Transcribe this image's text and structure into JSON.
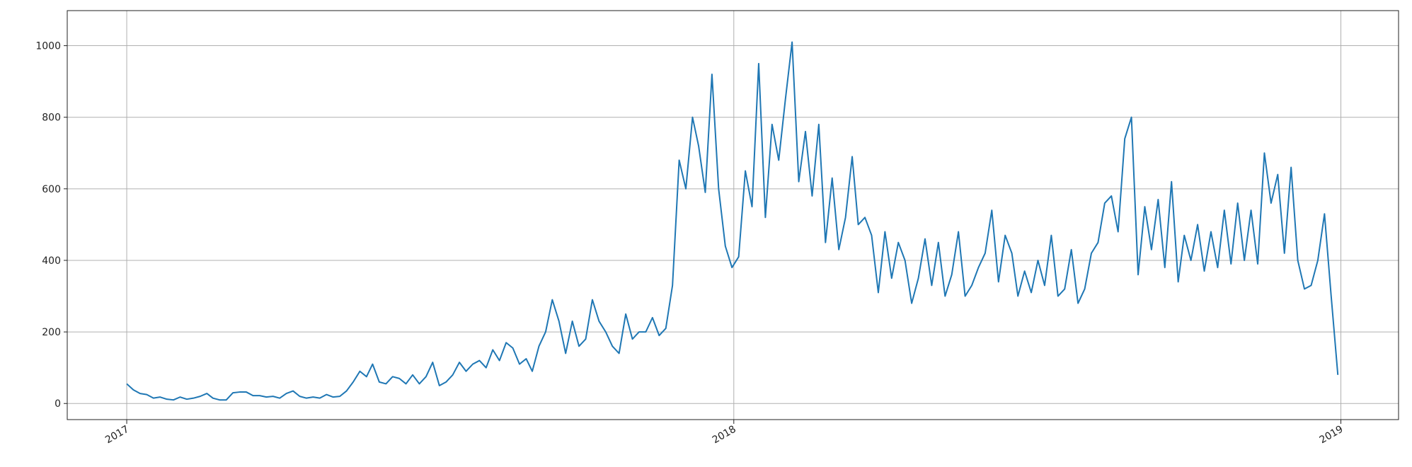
{
  "chart_data": {
    "type": "line",
    "color": "#1f77b4",
    "grid": true,
    "xlim": [
      2016.902,
      2019.095
    ],
    "xticks": [
      2017,
      2018,
      2019
    ],
    "ylim": [
      -45,
      1098
    ],
    "yticks": [
      0,
      200,
      400,
      600,
      800,
      1000
    ],
    "x": [
      2017,
      2017.011,
      2017.022,
      2017.033,
      2017.044,
      2017.055,
      2017.066,
      2017.077,
      2017.088,
      2017.099,
      2017.11,
      2017.121,
      2017.132,
      2017.142,
      2017.153,
      2017.164,
      2017.175,
      2017.186,
      2017.197,
      2017.208,
      2017.219,
      2017.23,
      2017.241,
      2017.252,
      2017.263,
      2017.274,
      2017.285,
      2017.296,
      2017.307,
      2017.318,
      2017.329,
      2017.34,
      2017.351,
      2017.362,
      2017.373,
      2017.384,
      2017.395,
      2017.405,
      2017.416,
      2017.427,
      2017.438,
      2017.449,
      2017.46,
      2017.471,
      2017.482,
      2017.493,
      2017.504,
      2017.515,
      2017.526,
      2017.537,
      2017.548,
      2017.559,
      2017.57,
      2017.581,
      2017.592,
      2017.603,
      2017.614,
      2017.625,
      2017.636,
      2017.647,
      2017.658,
      2017.668,
      2017.679,
      2017.69,
      2017.701,
      2017.712,
      2017.723,
      2017.734,
      2017.745,
      2017.756,
      2017.767,
      2017.778,
      2017.789,
      2017.8,
      2017.811,
      2017.822,
      2017.833,
      2017.844,
      2017.855,
      2017.866,
      2017.877,
      2017.888,
      2017.899,
      2017.91,
      2017.921,
      2017.932,
      2017.942,
      2017.953,
      2017.964,
      2017.975,
      2017.986,
      2017.997,
      2018.008,
      2018.019,
      2018.03,
      2018.041,
      2018.052,
      2018.063,
      2018.074,
      2018.085,
      2018.096,
      2018.107,
      2018.118,
      2018.129,
      2018.14,
      2018.151,
      2018.162,
      2018.173,
      2018.184,
      2018.195,
      2018.205,
      2018.216,
      2018.227,
      2018.238,
      2018.249,
      2018.26,
      2018.271,
      2018.282,
      2018.293,
      2018.304,
      2018.315,
      2018.326,
      2018.337,
      2018.348,
      2018.359,
      2018.37,
      2018.381,
      2018.392,
      2018.403,
      2018.414,
      2018.425,
      2018.436,
      2018.447,
      2018.458,
      2018.468,
      2018.479,
      2018.49,
      2018.501,
      2018.512,
      2018.523,
      2018.534,
      2018.545,
      2018.556,
      2018.567,
      2018.578,
      2018.589,
      2018.6,
      2018.611,
      2018.622,
      2018.633,
      2018.644,
      2018.655,
      2018.666,
      2018.677,
      2018.688,
      2018.699,
      2018.71,
      2018.721,
      2018.732,
      2018.742,
      2018.753,
      2018.764,
      2018.775,
      2018.786,
      2018.797,
      2018.808,
      2018.819,
      2018.83,
      2018.841,
      2018.852,
      2018.863,
      2018.874,
      2018.885,
      2018.896,
      2018.907,
      2018.918,
      2018.929,
      2018.94,
      2018.951,
      2018.962,
      2018.973,
      2018.984,
      2018.995
    ],
    "values": [
      55,
      38,
      28,
      25,
      15,
      18,
      12,
      10,
      18,
      12,
      15,
      20,
      28,
      15,
      10,
      10,
      30,
      32,
      32,
      22,
      22,
      18,
      20,
      15,
      28,
      35,
      20,
      15,
      18,
      15,
      25,
      18,
      20,
      35,
      60,
      90,
      75,
      110,
      60,
      55,
      75,
      70,
      55,
      80,
      55,
      75,
      115,
      50,
      60,
      80,
      115,
      90,
      110,
      120,
      100,
      150,
      120,
      170,
      155,
      110,
      125,
      90,
      160,
      200,
      290,
      230,
      140,
      230,
      160,
      180,
      290,
      230,
      200,
      160,
      140,
      250,
      180,
      200,
      200,
      240,
      190,
      210,
      330,
      680,
      600,
      800,
      720,
      590,
      920,
      600,
      440,
      380,
      410,
      650,
      550,
      950,
      520,
      780,
      680,
      850,
      1010,
      620,
      760,
      580,
      780,
      450,
      630,
      430,
      520,
      690,
      500,
      520,
      470,
      310,
      480,
      350,
      450,
      400,
      280,
      350,
      460,
      330,
      450,
      300,
      360,
      480,
      300,
      330,
      380,
      420,
      540,
      340,
      470,
      420,
      300,
      370,
      310,
      400,
      330,
      470,
      300,
      320,
      430,
      280,
      320,
      420,
      450,
      560,
      580,
      480,
      740,
      800,
      360,
      550,
      430,
      570,
      380,
      620,
      340,
      470,
      400,
      500,
      370,
      480,
      380,
      540,
      390,
      560,
      400,
      540,
      390,
      700,
      560,
      640,
      420,
      660,
      400,
      320,
      330,
      400,
      530,
      300,
      80
    ]
  }
}
